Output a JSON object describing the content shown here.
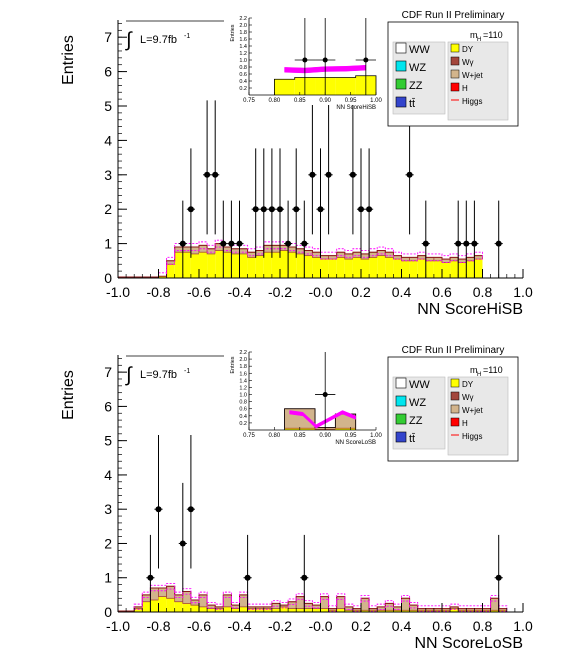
{
  "panels": [
    {
      "id": "hisb",
      "header": "CDF Run II Preliminary",
      "lumi": "L=9.7fb",
      "lumi_exp": "-1",
      "mass_label": "m",
      "mass_sub": "H",
      "mass_value": "=110",
      "ylabel": "Entries",
      "xlabel": "NN ScoreHiSB",
      "legend_left": [
        "WW",
        "WZ",
        "ZZ",
        "tt̄"
      ],
      "legend_right": [
        "DY",
        "Wγ",
        "W+jet",
        "H",
        "Higgs"
      ],
      "inset_ylabel": "Entries",
      "inset_xlabel": "NN ScoreHiSB"
    },
    {
      "id": "losb",
      "header": "CDF Run II Preliminary",
      "lumi": "L=9.7fb",
      "lumi_exp": "-1",
      "mass_label": "m",
      "mass_sub": "H",
      "mass_value": "=110",
      "ylabel": "Entries",
      "xlabel": "NN ScoreLoSB",
      "legend_left": [
        "WW",
        "WZ",
        "ZZ",
        "tt̄"
      ],
      "legend_right": [
        "DY",
        "Wγ",
        "W+jet",
        "H",
        "Higgs"
      ],
      "inset_ylabel": "Entries",
      "inset_xlabel": "NN ScoreLoSB"
    }
  ],
  "colors": {
    "WW": "#ffffff",
    "WZ": "#00e5ee",
    "ZZ": "#33cc33",
    "tt": "#3344cc",
    "DY": "#ffff00",
    "Wgamma": "#a3463c",
    "Wjet": "#d2b48c",
    "H": "#ff0000",
    "Higgs": "#ff66cc",
    "band": "#ff00ff"
  },
  "chart_data": [
    {
      "type": "bar",
      "title": "NN ScoreHiSB",
      "xlabel": "NN ScoreHiSB",
      "ylabel": "Entries",
      "xlim": [
        -1.0,
        1.0
      ],
      "ylim": [
        0,
        7.5
      ],
      "x_ticks": [
        -1.0,
        -0.8,
        -0.6,
        -0.4,
        -0.2,
        0.0,
        0.2,
        0.4,
        0.6,
        0.8,
        1.0
      ],
      "x_tick_labels": [
        "-1.0",
        "-0.8",
        "-0.6",
        "-0.4",
        "-0.2",
        "-0.0",
        "0.2",
        "0.4",
        "0.6",
        "0.8",
        "1.0"
      ],
      "y_ticks": [
        0,
        1,
        2,
        3,
        4,
        5,
        6,
        7
      ],
      "bin_width": 0.04,
      "bin_edges_start": -0.8,
      "dy": [
        0.05,
        0.4,
        0.75,
        0.75,
        0.7,
        0.75,
        0.7,
        0.8,
        0.75,
        0.7,
        0.7,
        0.6,
        0.65,
        0.75,
        0.75,
        0.8,
        0.75,
        0.7,
        0.65,
        0.6,
        0.55,
        0.55,
        0.6,
        0.55,
        0.6,
        0.55,
        0.6,
        0.65,
        0.6,
        0.55,
        0.5,
        0.5,
        0.55,
        0.5,
        0.5,
        0.45,
        0.5,
        0.45,
        0.5,
        0.55
      ],
      "ewk": [
        0.0,
        0.1,
        0.15,
        0.15,
        0.2,
        0.2,
        0.15,
        0.2,
        0.15,
        0.15,
        0.15,
        0.15,
        0.15,
        0.2,
        0.2,
        0.15,
        0.15,
        0.15,
        0.15,
        0.15,
        0.1,
        0.1,
        0.15,
        0.15,
        0.15,
        0.15,
        0.15,
        0.15,
        0.15,
        0.1,
        0.1,
        0.1,
        0.1,
        0.1,
        0.1,
        0.1,
        0.1,
        0.1,
        0.1,
        0.1
      ],
      "band_halfwidth": 0.1,
      "data_points": [
        {
          "x": -0.68,
          "y": 1
        },
        {
          "x": -0.64,
          "y": 2
        },
        {
          "x": -0.56,
          "y": 3
        },
        {
          "x": -0.52,
          "y": 3
        },
        {
          "x": -0.48,
          "y": 1
        },
        {
          "x": -0.44,
          "y": 1
        },
        {
          "x": -0.4,
          "y": 1
        },
        {
          "x": -0.32,
          "y": 2
        },
        {
          "x": -0.28,
          "y": 2
        },
        {
          "x": -0.24,
          "y": 2
        },
        {
          "x": -0.2,
          "y": 2
        },
        {
          "x": -0.16,
          "y": 1
        },
        {
          "x": -0.12,
          "y": 2
        },
        {
          "x": -0.08,
          "y": 1
        },
        {
          "x": -0.04,
          "y": 3
        },
        {
          "x": 0.0,
          "y": 2
        },
        {
          "x": 0.04,
          "y": 3
        },
        {
          "x": 0.16,
          "y": 3
        },
        {
          "x": 0.2,
          "y": 2
        },
        {
          "x": 0.24,
          "y": 2
        },
        {
          "x": 0.44,
          "y": 3
        },
        {
          "x": 0.52,
          "y": 1
        },
        {
          "x": 0.68,
          "y": 1
        },
        {
          "x": 0.72,
          "y": 1
        },
        {
          "x": 0.76,
          "y": 1
        },
        {
          "x": 0.88,
          "y": 1
        }
      ],
      "inset": {
        "xlim": [
          0.75,
          1.0
        ],
        "ylim": [
          0,
          2.2
        ],
        "x_ticks": [
          0.75,
          0.8,
          0.85,
          0.9,
          0.95,
          1.0
        ],
        "x_tick_labels": [
          "0.75",
          "0.80",
          "0.85",
          "0.90",
          "0.95",
          "1.00"
        ],
        "y_ticks": [
          0.2,
          0.4,
          0.6,
          0.8,
          1.0,
          1.2,
          1.4,
          1.6,
          1.8,
          2.0,
          2.2
        ],
        "y_tick_labels": [
          "0.2",
          "0.4",
          "0.6",
          "0.8",
          "1.0",
          "1.2",
          "1.4",
          "1.6",
          "1.8",
          "2.0",
          "2.2"
        ],
        "bins": [
          {
            "x0": 0.8,
            "x1": 0.84,
            "dy": 0.45,
            "ewk": 0.0
          },
          {
            "x0": 0.84,
            "x1": 0.88,
            "dy": 0.5,
            "ewk": 0.0
          },
          {
            "x0": 0.88,
            "x1": 0.92,
            "dy": 0.5,
            "ewk": 0.0
          },
          {
            "x0": 0.92,
            "x1": 0.96,
            "dy": 0.5,
            "ewk": 0.0
          },
          {
            "x0": 0.96,
            "x1": 1.0,
            "dy": 0.55,
            "ewk": 0.0
          }
        ],
        "band": {
          "x0": 0.82,
          "x1": 0.98,
          "y": [
            0.72,
            0.7,
            0.74,
            0.75,
            0.78
          ],
          "halfwidth": 0.07
        },
        "data_points": [
          {
            "x": 0.86,
            "y": 1,
            "xerr": 0.02
          },
          {
            "x": 0.9,
            "y": 1,
            "xerr": 0.02
          },
          {
            "x": 0.98,
            "y": 1,
            "xerr": 0.02
          }
        ]
      }
    },
    {
      "type": "bar",
      "title": "NN ScoreLoSB",
      "xlabel": "NN ScoreLoSB",
      "ylabel": "Entries",
      "xlim": [
        -1.0,
        1.0
      ],
      "ylim": [
        0,
        7.5
      ],
      "x_ticks": [
        -1.0,
        -0.8,
        -0.6,
        -0.4,
        -0.2,
        0.0,
        0.2,
        0.4,
        0.6,
        0.8,
        1.0
      ],
      "x_tick_labels": [
        "-1.0",
        "-0.8",
        "-0.6",
        "-0.4",
        "-0.2",
        "-0.0",
        "0.2",
        "0.4",
        "0.6",
        "0.8",
        "1.0"
      ],
      "y_ticks": [
        0,
        1,
        2,
        3,
        4,
        5,
        6,
        7
      ],
      "bin_width": 0.04,
      "bin_edges_start": -0.92,
      "dy": [
        0.1,
        0.3,
        0.35,
        0.45,
        0.4,
        0.3,
        0.25,
        0.2,
        0.15,
        0.1,
        0.1,
        0.15,
        0.1,
        0.15,
        0.1,
        0.1,
        0.1,
        0.1,
        0.15,
        0.1,
        0.1,
        0.1,
        0.1,
        0.1,
        0.05,
        0.1,
        0.05,
        0.05,
        0.05,
        0.05,
        0.05,
        0.05,
        0.05,
        0.05,
        0.05,
        0.05,
        0.05,
        0.05,
        0.05,
        0.1,
        0.05,
        0.05,
        0.05,
        0.05,
        0.05,
        0.05
      ],
      "ewk": [
        0.05,
        0.2,
        0.35,
        0.25,
        0.35,
        0.2,
        0.35,
        0.15,
        0.35,
        0.1,
        0.05,
        0.35,
        0.1,
        0.35,
        0.05,
        0.05,
        0.05,
        0.15,
        0.05,
        0.2,
        0.35,
        0.15,
        0.1,
        0.35,
        0.05,
        0.35,
        0.1,
        0.05,
        0.35,
        0.05,
        0.1,
        0.2,
        0.1,
        0.35,
        0.15,
        0.05,
        0.05,
        0.05,
        0.05,
        0.05,
        0.05,
        0.05,
        0.05,
        0.05,
        0.35,
        0.05
      ],
      "band_halfwidth": 0.08,
      "data_points": [
        {
          "x": -0.84,
          "y": 1
        },
        {
          "x": -0.8,
          "y": 3
        },
        {
          "x": -0.68,
          "y": 2
        },
        {
          "x": -0.64,
          "y": 3
        },
        {
          "x": -0.36,
          "y": 1
        },
        {
          "x": -0.08,
          "y": 1
        },
        {
          "x": 0.88,
          "y": 1
        }
      ],
      "inset": {
        "xlim": [
          0.75,
          1.0
        ],
        "ylim": [
          0,
          2.2
        ],
        "x_ticks": [
          0.75,
          0.8,
          0.85,
          0.9,
          0.95,
          1.0
        ],
        "x_tick_labels": [
          "0.75",
          "0.80",
          "0.85",
          "0.90",
          "0.95",
          "1.00"
        ],
        "y_ticks": [
          0.2,
          0.4,
          0.6,
          0.8,
          1.0,
          1.2,
          1.4,
          1.6,
          1.8,
          2.0,
          2.2
        ],
        "y_tick_labels": [
          "0.2",
          "0.4",
          "0.6",
          "0.8",
          "1.0",
          "1.2",
          "1.4",
          "1.6",
          "1.8",
          "2.0",
          "2.2"
        ],
        "bins": [
          {
            "x0": 0.82,
            "x1": 0.88,
            "dy": 0.05,
            "ewk": 0.55
          },
          {
            "x0": 0.88,
            "x1": 0.92,
            "dy": 0.02,
            "ewk": 0.05
          },
          {
            "x0": 0.92,
            "x1": 0.96,
            "dy": 0.05,
            "ewk": 0.4
          }
        ],
        "band": {
          "x0": 0.83,
          "x1": 0.96,
          "y": [
            0.5,
            0.45,
            0.1,
            0.3,
            0.5,
            0.35
          ],
          "halfwidth": 0.05
        },
        "data_points": [
          {
            "x": 0.9,
            "y": 1,
            "xerr": 0.02
          }
        ]
      }
    }
  ]
}
